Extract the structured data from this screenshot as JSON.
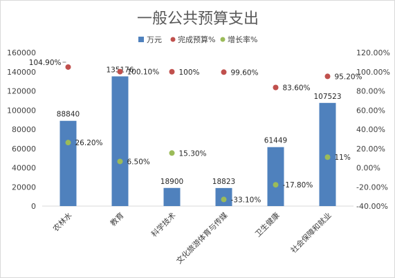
{
  "chart_data": {
    "type": "bar",
    "title": "一般公共预算支出",
    "legend_position": "top",
    "grid": false,
    "categories": [
      "农林水",
      "教育",
      "科学技术",
      "文化旅游体育与传媒",
      "卫生健康",
      "社会保障和就业"
    ],
    "y_left": {
      "min": 0,
      "max": 160000,
      "ticks": [
        "0",
        "20000",
        "40000",
        "60000",
        "80000",
        "100000",
        "120000",
        "140000",
        "160000"
      ]
    },
    "y_right": {
      "min": -40,
      "max": 120,
      "ticks": [
        "-40.00%",
        "-20.00%",
        "0.00%",
        "20.00%",
        "40.00%",
        "60.00%",
        "80.00%",
        "100.00%",
        "120.00%"
      ]
    },
    "series": [
      {
        "name": "万元",
        "kind": "bar",
        "axis": "left",
        "color": "#4f81bd",
        "values": [
          88840,
          135176,
          18900,
          18823,
          61449,
          107523
        ],
        "labels": [
          "88840",
          "135176",
          "18900",
          "18823",
          "61449",
          "107523"
        ]
      },
      {
        "name": "完成预算%",
        "kind": "scatter",
        "axis": "right",
        "color": "#c0504d",
        "values": [
          104.9,
          100.1,
          100,
          99.6,
          83.6,
          95.2
        ],
        "labels": [
          "104.90%",
          "100.10%",
          "100%",
          "99.60%",
          "83.60%",
          "95.20%"
        ]
      },
      {
        "name": "增长率%",
        "kind": "scatter",
        "axis": "right",
        "color": "#9bbb59",
        "values": [
          26.2,
          6.5,
          15.3,
          -33.1,
          -17.8,
          11
        ],
        "labels": [
          "26.20%",
          "6.50%",
          "15.30%",
          "-33.10%",
          "-17.80%",
          "11%"
        ]
      }
    ]
  }
}
